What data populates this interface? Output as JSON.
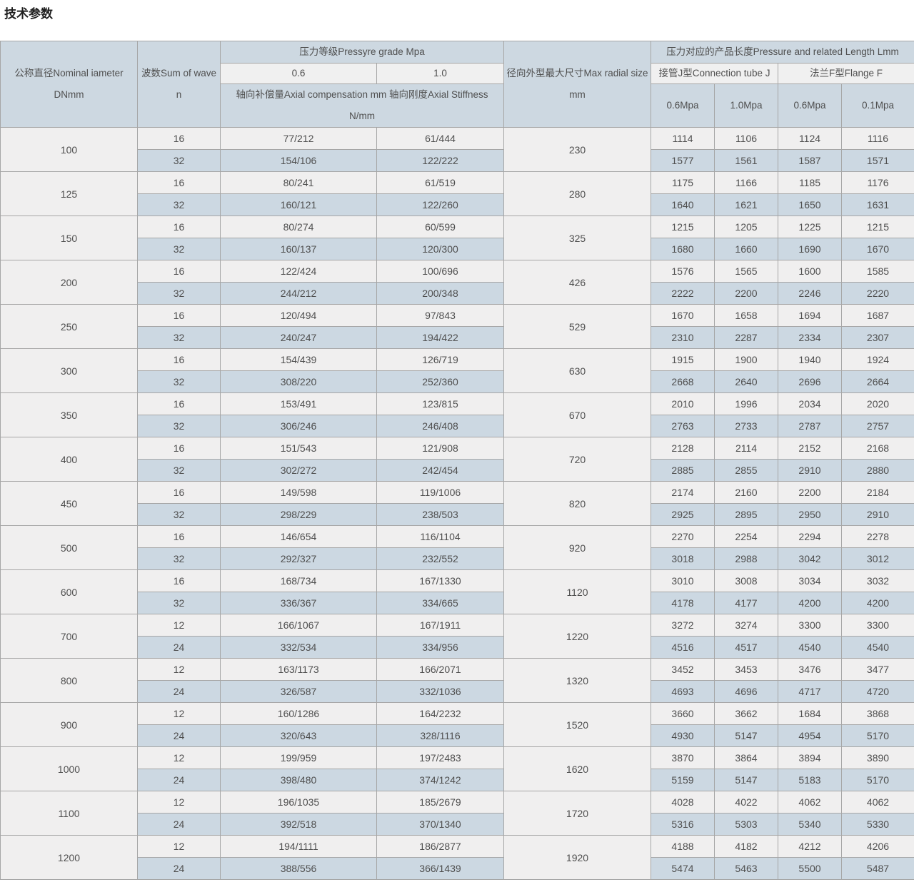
{
  "page_title": "技术参数",
  "colors": {
    "header_bg": "#cdd8e1",
    "subheader_bg": "#f0f0f0",
    "row_light_bg": "#f0efef",
    "row_alt_bg": "#ccd8e2",
    "border": "#a6a6a6",
    "text": "#4f4f4f"
  },
  "table": {
    "header": {
      "nominal_diameter": "公称直径Nominal iameter DNmm",
      "wave_count": "波数Sum of wave n",
      "pressure_grade_group": "压力等级Pressyre grade Mpa",
      "pressure_06": "0.6",
      "pressure_10": "1.0",
      "axial_compensation": "轴向补偿量Axial compensation mm 轴向刚度Axial Stiffness N/mm",
      "max_radial_size": "径向外型最大尺寸Max radial size mm",
      "length_group": "压力对应的产品长度Pressure and related Length Lmm",
      "connection_tube_j": "接管J型Connection tube J",
      "flange_f": "法兰F型Flange F",
      "j_06mpa": "0.6Mpa",
      "j_10mpa": "1.0Mpa",
      "f_06mpa": "0.6Mpa",
      "f_01mpa": "0.1Mpa"
    },
    "rows": [
      {
        "dn": "100",
        "radial": "230",
        "sub": [
          {
            "n": "16",
            "c06": "77/212",
            "c10": "61/444",
            "j06": "1114",
            "j10": "1106",
            "f06": "1124",
            "f01": "1116"
          },
          {
            "n": "32",
            "c06": "154/106",
            "c10": "122/222",
            "j06": "1577",
            "j10": "1561",
            "f06": "1587",
            "f01": "1571"
          }
        ]
      },
      {
        "dn": "125",
        "radial": "280",
        "sub": [
          {
            "n": "16",
            "c06": "80/241",
            "c10": "61/519",
            "j06": "1175",
            "j10": "1166",
            "f06": "1185",
            "f01": "1176"
          },
          {
            "n": "32",
            "c06": "160/121",
            "c10": "122/260",
            "j06": "1640",
            "j10": "1621",
            "f06": "1650",
            "f01": "1631"
          }
        ]
      },
      {
        "dn": "150",
        "radial": "325",
        "sub": [
          {
            "n": "16",
            "c06": "80/274",
            "c10": "60/599",
            "j06": "1215",
            "j10": "1205",
            "f06": "1225",
            "f01": "1215"
          },
          {
            "n": "32",
            "c06": "160/137",
            "c10": "120/300",
            "j06": "1680",
            "j10": "1660",
            "f06": "1690",
            "f01": "1670"
          }
        ]
      },
      {
        "dn": "200",
        "radial": "426",
        "sub": [
          {
            "n": "16",
            "c06": "122/424",
            "c10": "100/696",
            "j06": "1576",
            "j10": "1565",
            "f06": "1600",
            "f01": "1585"
          },
          {
            "n": "32",
            "c06": "244/212",
            "c10": "200/348",
            "j06": "2222",
            "j10": "2200",
            "f06": "2246",
            "f01": "2220"
          }
        ]
      },
      {
        "dn": "250",
        "radial": "529",
        "sub": [
          {
            "n": "16",
            "c06": "120/494",
            "c10": "97/843",
            "j06": "1670",
            "j10": "1658",
            "f06": "1694",
            "f01": "1687"
          },
          {
            "n": "32",
            "c06": "240/247",
            "c10": "194/422",
            "j06": "2310",
            "j10": "2287",
            "f06": "2334",
            "f01": "2307"
          }
        ]
      },
      {
        "dn": "300",
        "radial": "630",
        "sub": [
          {
            "n": "16",
            "c06": "154/439",
            "c10": "126/719",
            "j06": "1915",
            "j10": "1900",
            "f06": "1940",
            "f01": "1924"
          },
          {
            "n": "32",
            "c06": "308/220",
            "c10": "252/360",
            "j06": "2668",
            "j10": "2640",
            "f06": "2696",
            "f01": "2664"
          }
        ]
      },
      {
        "dn": "350",
        "radial": "670",
        "sub": [
          {
            "n": "16",
            "c06": "153/491",
            "c10": "123/815",
            "j06": "2010",
            "j10": "1996",
            "f06": "2034",
            "f01": "2020"
          },
          {
            "n": "32",
            "c06": "306/246",
            "c10": "246/408",
            "j06": "2763",
            "j10": "2733",
            "f06": "2787",
            "f01": "2757"
          }
        ]
      },
      {
        "dn": "400",
        "radial": "720",
        "sub": [
          {
            "n": "16",
            "c06": "151/543",
            "c10": "121/908",
            "j06": "2128",
            "j10": "2114",
            "f06": "2152",
            "f01": "2168"
          },
          {
            "n": "32",
            "c06": "302/272",
            "c10": "242/454",
            "j06": "2885",
            "j10": "2855",
            "f06": "2910",
            "f01": "2880"
          }
        ]
      },
      {
        "dn": "450",
        "radial": "820",
        "sub": [
          {
            "n": "16",
            "c06": "149/598",
            "c10": "119/1006",
            "j06": "2174",
            "j10": "2160",
            "f06": "2200",
            "f01": "2184"
          },
          {
            "n": "32",
            "c06": "298/229",
            "c10": "238/503",
            "j06": "2925",
            "j10": "2895",
            "f06": "2950",
            "f01": "2910"
          }
        ]
      },
      {
        "dn": "500",
        "radial": "920",
        "sub": [
          {
            "n": "16",
            "c06": "146/654",
            "c10": "116/1104",
            "j06": "2270",
            "j10": "2254",
            "f06": "2294",
            "f01": "2278"
          },
          {
            "n": "32",
            "c06": "292/327",
            "c10": "232/552",
            "j06": "3018",
            "j10": "2988",
            "f06": "3042",
            "f01": "3012"
          }
        ]
      },
      {
        "dn": "600",
        "radial": "1120",
        "sub": [
          {
            "n": "16",
            "c06": "168/734",
            "c10": "167/1330",
            "j06": "3010",
            "j10": "3008",
            "f06": "3034",
            "f01": "3032"
          },
          {
            "n": "32",
            "c06": "336/367",
            "c10": "334/665",
            "j06": "4178",
            "j10": "4177",
            "f06": "4200",
            "f01": "4200"
          }
        ]
      },
      {
        "dn": "700",
        "radial": "1220",
        "sub": [
          {
            "n": "12",
            "c06": "166/1067",
            "c10": "167/1911",
            "j06": "3272",
            "j10": "3274",
            "f06": "3300",
            "f01": "3300"
          },
          {
            "n": "24",
            "c06": "332/534",
            "c10": "334/956",
            "j06": "4516",
            "j10": "4517",
            "f06": "4540",
            "f01": "4540"
          }
        ]
      },
      {
        "dn": "800",
        "radial": "1320",
        "sub": [
          {
            "n": "12",
            "c06": "163/1173",
            "c10": "166/2071",
            "j06": "3452",
            "j10": "3453",
            "f06": "3476",
            "f01": "3477"
          },
          {
            "n": "24",
            "c06": "326/587",
            "c10": "332/1036",
            "j06": "4693",
            "j10": "4696",
            "f06": "4717",
            "f01": "4720"
          }
        ]
      },
      {
        "dn": "900",
        "radial": "1520",
        "sub": [
          {
            "n": "12",
            "c06": "160/1286",
            "c10": "164/2232",
            "j06": "3660",
            "j10": "3662",
            "f06": "1684",
            "f01": "3868"
          },
          {
            "n": "24",
            "c06": "320/643",
            "c10": "328/1116",
            "j06": "4930",
            "j10": "5147",
            "f06": "4954",
            "f01": "5170"
          }
        ]
      },
      {
        "dn": "1000",
        "radial": "1620",
        "sub": [
          {
            "n": "12",
            "c06": "199/959",
            "c10": "197/2483",
            "j06": "3870",
            "j10": "3864",
            "f06": "3894",
            "f01": "3890"
          },
          {
            "n": "24",
            "c06": "398/480",
            "c10": "374/1242",
            "j06": "5159",
            "j10": "5147",
            "f06": "5183",
            "f01": "5170"
          }
        ]
      },
      {
        "dn": "1100",
        "radial": "1720",
        "sub": [
          {
            "n": "12",
            "c06": "196/1035",
            "c10": "185/2679",
            "j06": "4028",
            "j10": "4022",
            "f06": "4062",
            "f01": "4062"
          },
          {
            "n": "24",
            "c06": "392/518",
            "c10": "370/1340",
            "j06": "5316",
            "j10": "5303",
            "f06": "5340",
            "f01": "5330"
          }
        ]
      },
      {
        "dn": "1200",
        "radial": "1920",
        "sub": [
          {
            "n": "12",
            "c06": "194/1111",
            "c10": "186/2877",
            "j06": "4188",
            "j10": "4182",
            "f06": "4212",
            "f01": "4206"
          },
          {
            "n": "24",
            "c06": "388/556",
            "c10": "366/1439",
            "j06": "5474",
            "j10": "5463",
            "f06": "5500",
            "f01": "5487"
          }
        ]
      }
    ]
  }
}
